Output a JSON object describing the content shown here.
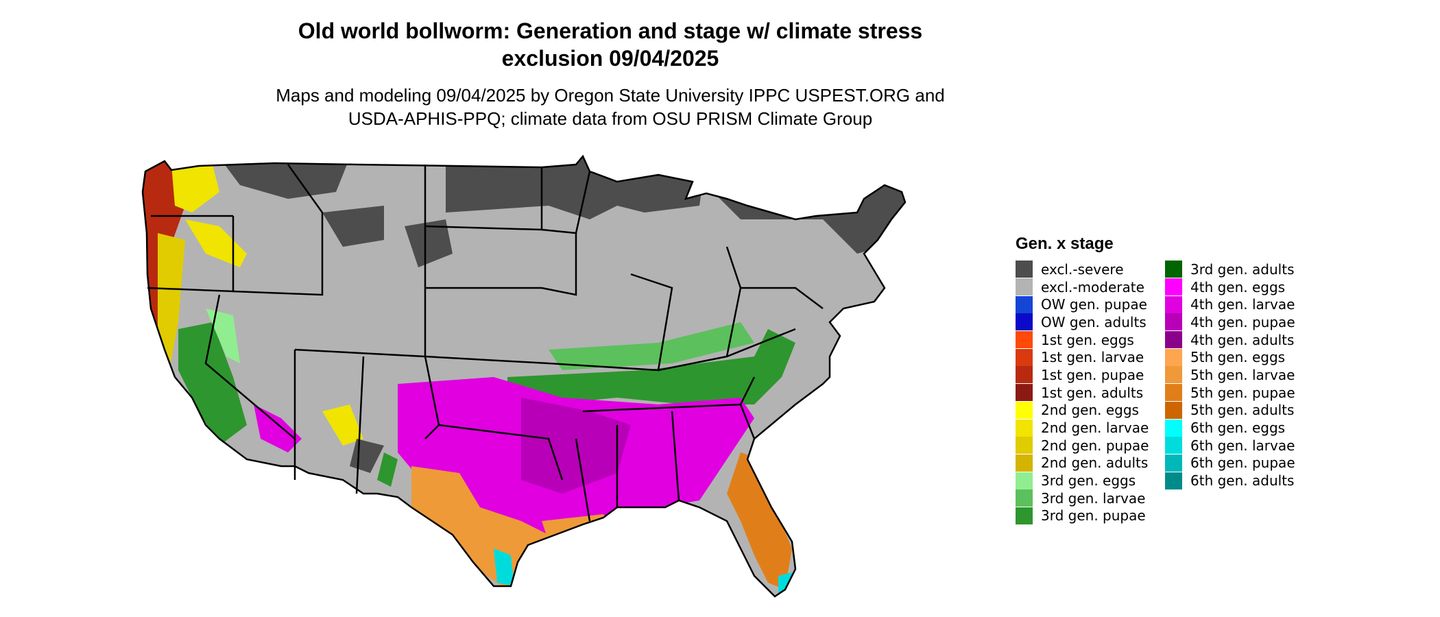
{
  "title_line1": "Old world bollworm: Generation and stage w/ climate stress",
  "title_line2": "exclusion 09/04/2025",
  "subtitle_line1": "Maps and modeling 09/04/2025 by Oregon State University IPPC USPEST.ORG and",
  "subtitle_line2": "USDA-APHIS-PPQ; climate data from OSU PRISM Climate Group",
  "legend": {
    "title": "Gen. x stage",
    "col1": [
      {
        "label": "excl.-severe",
        "color": "#4d4d4d"
      },
      {
        "label": "excl.-moderate",
        "color": "#b3b3b3"
      },
      {
        "label": "OW gen. pupae",
        "color": "#1446d6"
      },
      {
        "label": "OW gen. adults",
        "color": "#0a0ac8"
      },
      {
        "label": "1st gen. eggs",
        "color": "#ff4a0a"
      },
      {
        "label": "1st gen. larvae",
        "color": "#d93a0f"
      },
      {
        "label": "1st gen. pupae",
        "color": "#b82a10"
      },
      {
        "label": "1st gen. adults",
        "color": "#8c1a14"
      },
      {
        "label": "2nd gen. eggs",
        "color": "#ffff00"
      },
      {
        "label": "2nd gen. larvae",
        "color": "#f0e400"
      },
      {
        "label": "2nd gen. pupae",
        "color": "#e0cc00"
      },
      {
        "label": "2nd gen. adults",
        "color": "#d4b400"
      },
      {
        "label": "3rd gen. eggs",
        "color": "#90ee90"
      },
      {
        "label": "3rd gen. larvae",
        "color": "#5cc05c"
      },
      {
        "label": "3rd gen. pupae",
        "color": "#2e962e"
      }
    ],
    "col2": [
      {
        "label": "3rd gen. adults",
        "color": "#006400"
      },
      {
        "label": "4th gen. eggs",
        "color": "#ff00ff"
      },
      {
        "label": "4th gen. larvae",
        "color": "#e000e0"
      },
      {
        "label": "4th gen. pupae",
        "color": "#b800b8"
      },
      {
        "label": "4th gen. adults",
        "color": "#8b008b"
      },
      {
        "label": "5th gen. eggs",
        "color": "#ffa54f"
      },
      {
        "label": "5th gen. larvae",
        "color": "#ee9a38"
      },
      {
        "label": "5th gen. pupae",
        "color": "#e07f1a"
      },
      {
        "label": "5th gen. adults",
        "color": "#cd6600"
      },
      {
        "label": "6th gen. eggs",
        "color": "#00ffff"
      },
      {
        "label": "6th gen. larvae",
        "color": "#00dcdc"
      },
      {
        "label": "6th gen. pupae",
        "color": "#00b8b8"
      },
      {
        "label": "6th gen. adults",
        "color": "#008b8b"
      }
    ]
  }
}
